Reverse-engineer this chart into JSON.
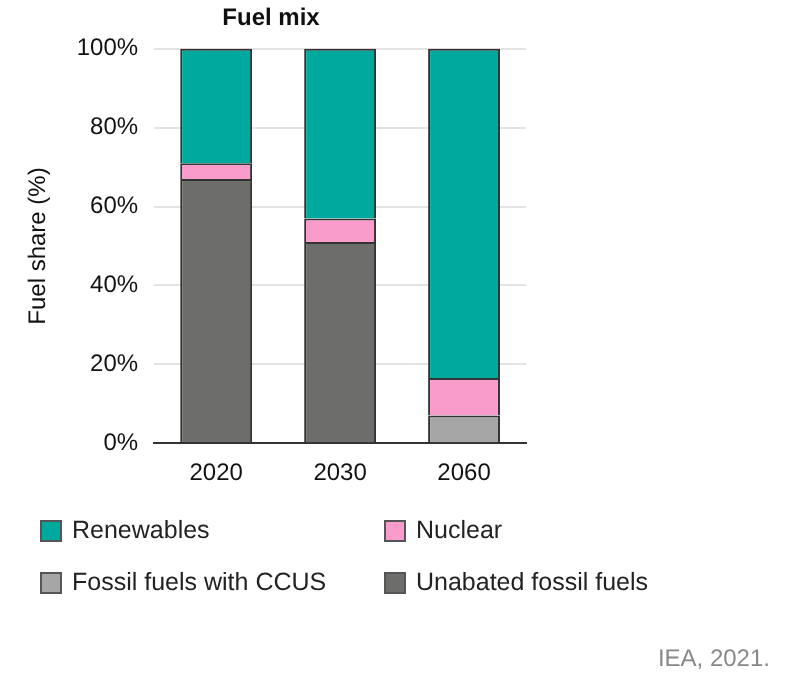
{
  "chart_data": {
    "type": "bar",
    "title": "Fuel mix",
    "ylabel": "Fuel share (%)",
    "categories": [
      "2020",
      "2030",
      "2060"
    ],
    "stacked": true,
    "series": [
      {
        "name": "Unabated fossil fuels",
        "color": "#6d6d6b",
        "values": [
          67,
          51,
          0
        ]
      },
      {
        "name": "Fossil fuels with CCUS",
        "color": "#a6a6a6",
        "values": [
          0,
          0,
          7
        ]
      },
      {
        "name": "Nuclear",
        "color": "#f99bcb",
        "values": [
          4,
          6,
          9.5
        ]
      },
      {
        "name": "Renewables",
        "color": "#00a99d",
        "values": [
          29,
          43,
          83.5
        ]
      }
    ],
    "ylim": [
      0,
      100
    ],
    "yticks": [
      {
        "value": 0,
        "label": "0%"
      },
      {
        "value": 20,
        "label": "20%"
      },
      {
        "value": 40,
        "label": "40%"
      },
      {
        "value": 60,
        "label": "60%"
      },
      {
        "value": 80,
        "label": "80%"
      },
      {
        "value": 100,
        "label": "100%"
      }
    ],
    "grid": "y",
    "legend": "bottom",
    "annotations": [
      "IEA, 2021."
    ]
  }
}
